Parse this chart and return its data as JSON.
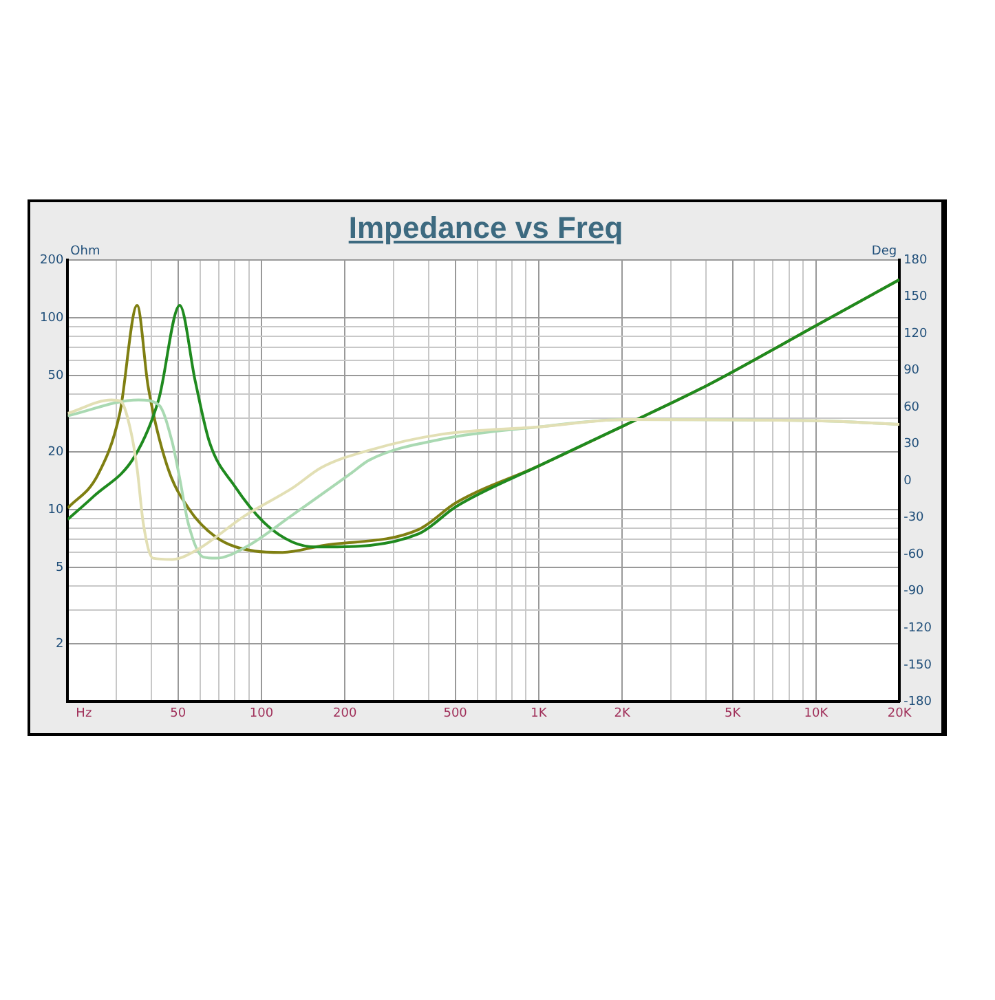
{
  "chart_data": {
    "type": "line",
    "title": "Impedance vs Freq",
    "xlabel": "Hz",
    "ylabel": "Ohm",
    "y2label": "Deg",
    "xlim": [
      20,
      20000
    ],
    "ylim": [
      1,
      200
    ],
    "y2lim": [
      -180,
      180
    ],
    "log": "xy",
    "xticks": [
      {
        "value": 20,
        "label": null
      },
      {
        "value": 30,
        "label": null
      },
      {
        "value": 40,
        "label": null
      },
      50,
      {
        "value": 60,
        "label": null
      },
      {
        "value": 70,
        "label": null
      },
      {
        "value": 80,
        "label": null
      },
      {
        "value": 90,
        "label": null
      },
      100,
      200,
      {
        "value": 300,
        "label": null
      },
      {
        "value": 400,
        "label": null
      },
      500,
      {
        "value": 600,
        "label": null
      },
      {
        "value": 700,
        "label": null
      },
      {
        "value": 800,
        "label": null
      },
      {
        "value": 900,
        "label": null
      },
      {
        "value": 1000,
        "label": "1K"
      },
      {
        "value": 2000,
        "label": "2K"
      },
      {
        "value": 3000,
        "label": null
      },
      {
        "value": 4000,
        "label": null
      },
      {
        "value": 5000,
        "label": "5K"
      },
      {
        "value": 6000,
        "label": null
      },
      {
        "value": 7000,
        "label": null
      },
      {
        "value": 8000,
        "label": null
      },
      {
        "value": 9000,
        "label": null
      },
      {
        "value": 10000,
        "label": "10K"
      },
      {
        "value": 20000,
        "label": "20K"
      }
    ],
    "yticks": [
      {
        "value": 1,
        "label": null
      },
      2,
      {
        "value": 3,
        "label": null
      },
      {
        "value": 4,
        "label": null
      },
      5,
      {
        "value": 6,
        "label": null
      },
      {
        "value": 7,
        "label": null
      },
      {
        "value": 8,
        "label": null
      },
      {
        "value": 9,
        "label": null
      },
      10,
      20,
      {
        "value": 30,
        "label": null
      },
      {
        "value": 40,
        "label": null
      },
      50,
      {
        "value": 60,
        "label": null
      },
      {
        "value": 70,
        "label": null
      },
      {
        "value": 80,
        "label": null
      },
      {
        "value": 90,
        "label": null
      },
      100,
      200
    ],
    "y2ticks": [
      -180,
      -150,
      -120,
      -90,
      -60,
      -30,
      0,
      30,
      60,
      90,
      120,
      150,
      180
    ],
    "grid": true,
    "marker": "none",
    "line_style": "solid",
    "series": [
      {
        "color": "#e2dfb4",
        "axis": "y2",
        "x": [
          20,
          28.8,
          31,
          33.9,
          35.6,
          37.5,
          40.6,
          47.6,
          57.7,
          87.7,
          129,
          165,
          245,
          447,
          1000,
          2047,
          10100,
          20000
        ],
        "values": [
          55,
          66,
          65,
          39,
          10,
          -35,
          -63,
          -64,
          -57,
          -28,
          -6,
          11,
          25,
          38,
          44,
          50,
          49,
          46
        ]
      },
      {
        "color": "#a9d9b2",
        "axis": "y2",
        "x": [
          20,
          36,
          42.6,
          47.6,
          50.7,
          54.5,
          61.6,
          68.6,
          87.7,
          129,
          210,
          245,
          447,
          1000,
          2047,
          10100,
          20000
        ],
        "values": [
          53,
          66,
          62,
          32,
          2,
          -35,
          -62,
          -63,
          -54,
          -28,
          6,
          17,
          34,
          44,
          50,
          49,
          46
        ]
      },
      {
        "color": "#1f8a1f",
        "x": [
          20,
          24.9,
          34.9,
          42.6,
          50.7,
          57.7,
          65,
          80,
          102,
          129,
          158,
          165,
          369,
          504,
          998,
          2047,
          4058,
          10100,
          20000
        ],
        "values": [
          8.9,
          11.8,
          19,
          37.6,
          116,
          46.7,
          22.4,
          13.3,
          8.6,
          6.8,
          6.4,
          6.4,
          7.5,
          10.4,
          16.9,
          27.6,
          44.5,
          91.8,
          158
        ]
      },
      {
        "color": "#7f7f12",
        "x": [
          20,
          25.7,
          30.8,
          35.6,
          39,
          45.7,
          54.5,
          68.6,
          94.5,
          119,
          165,
          369,
          504,
          998,
          2047,
          4058,
          10100,
          20000
        ],
        "values": [
          10.2,
          15.2,
          31.6,
          116,
          44,
          16.9,
          10.2,
          7.2,
          6.1,
          6,
          6.5,
          7.9,
          10.9,
          16.9,
          27.6,
          44.5,
          91.8,
          158
        ]
      }
    ]
  }
}
